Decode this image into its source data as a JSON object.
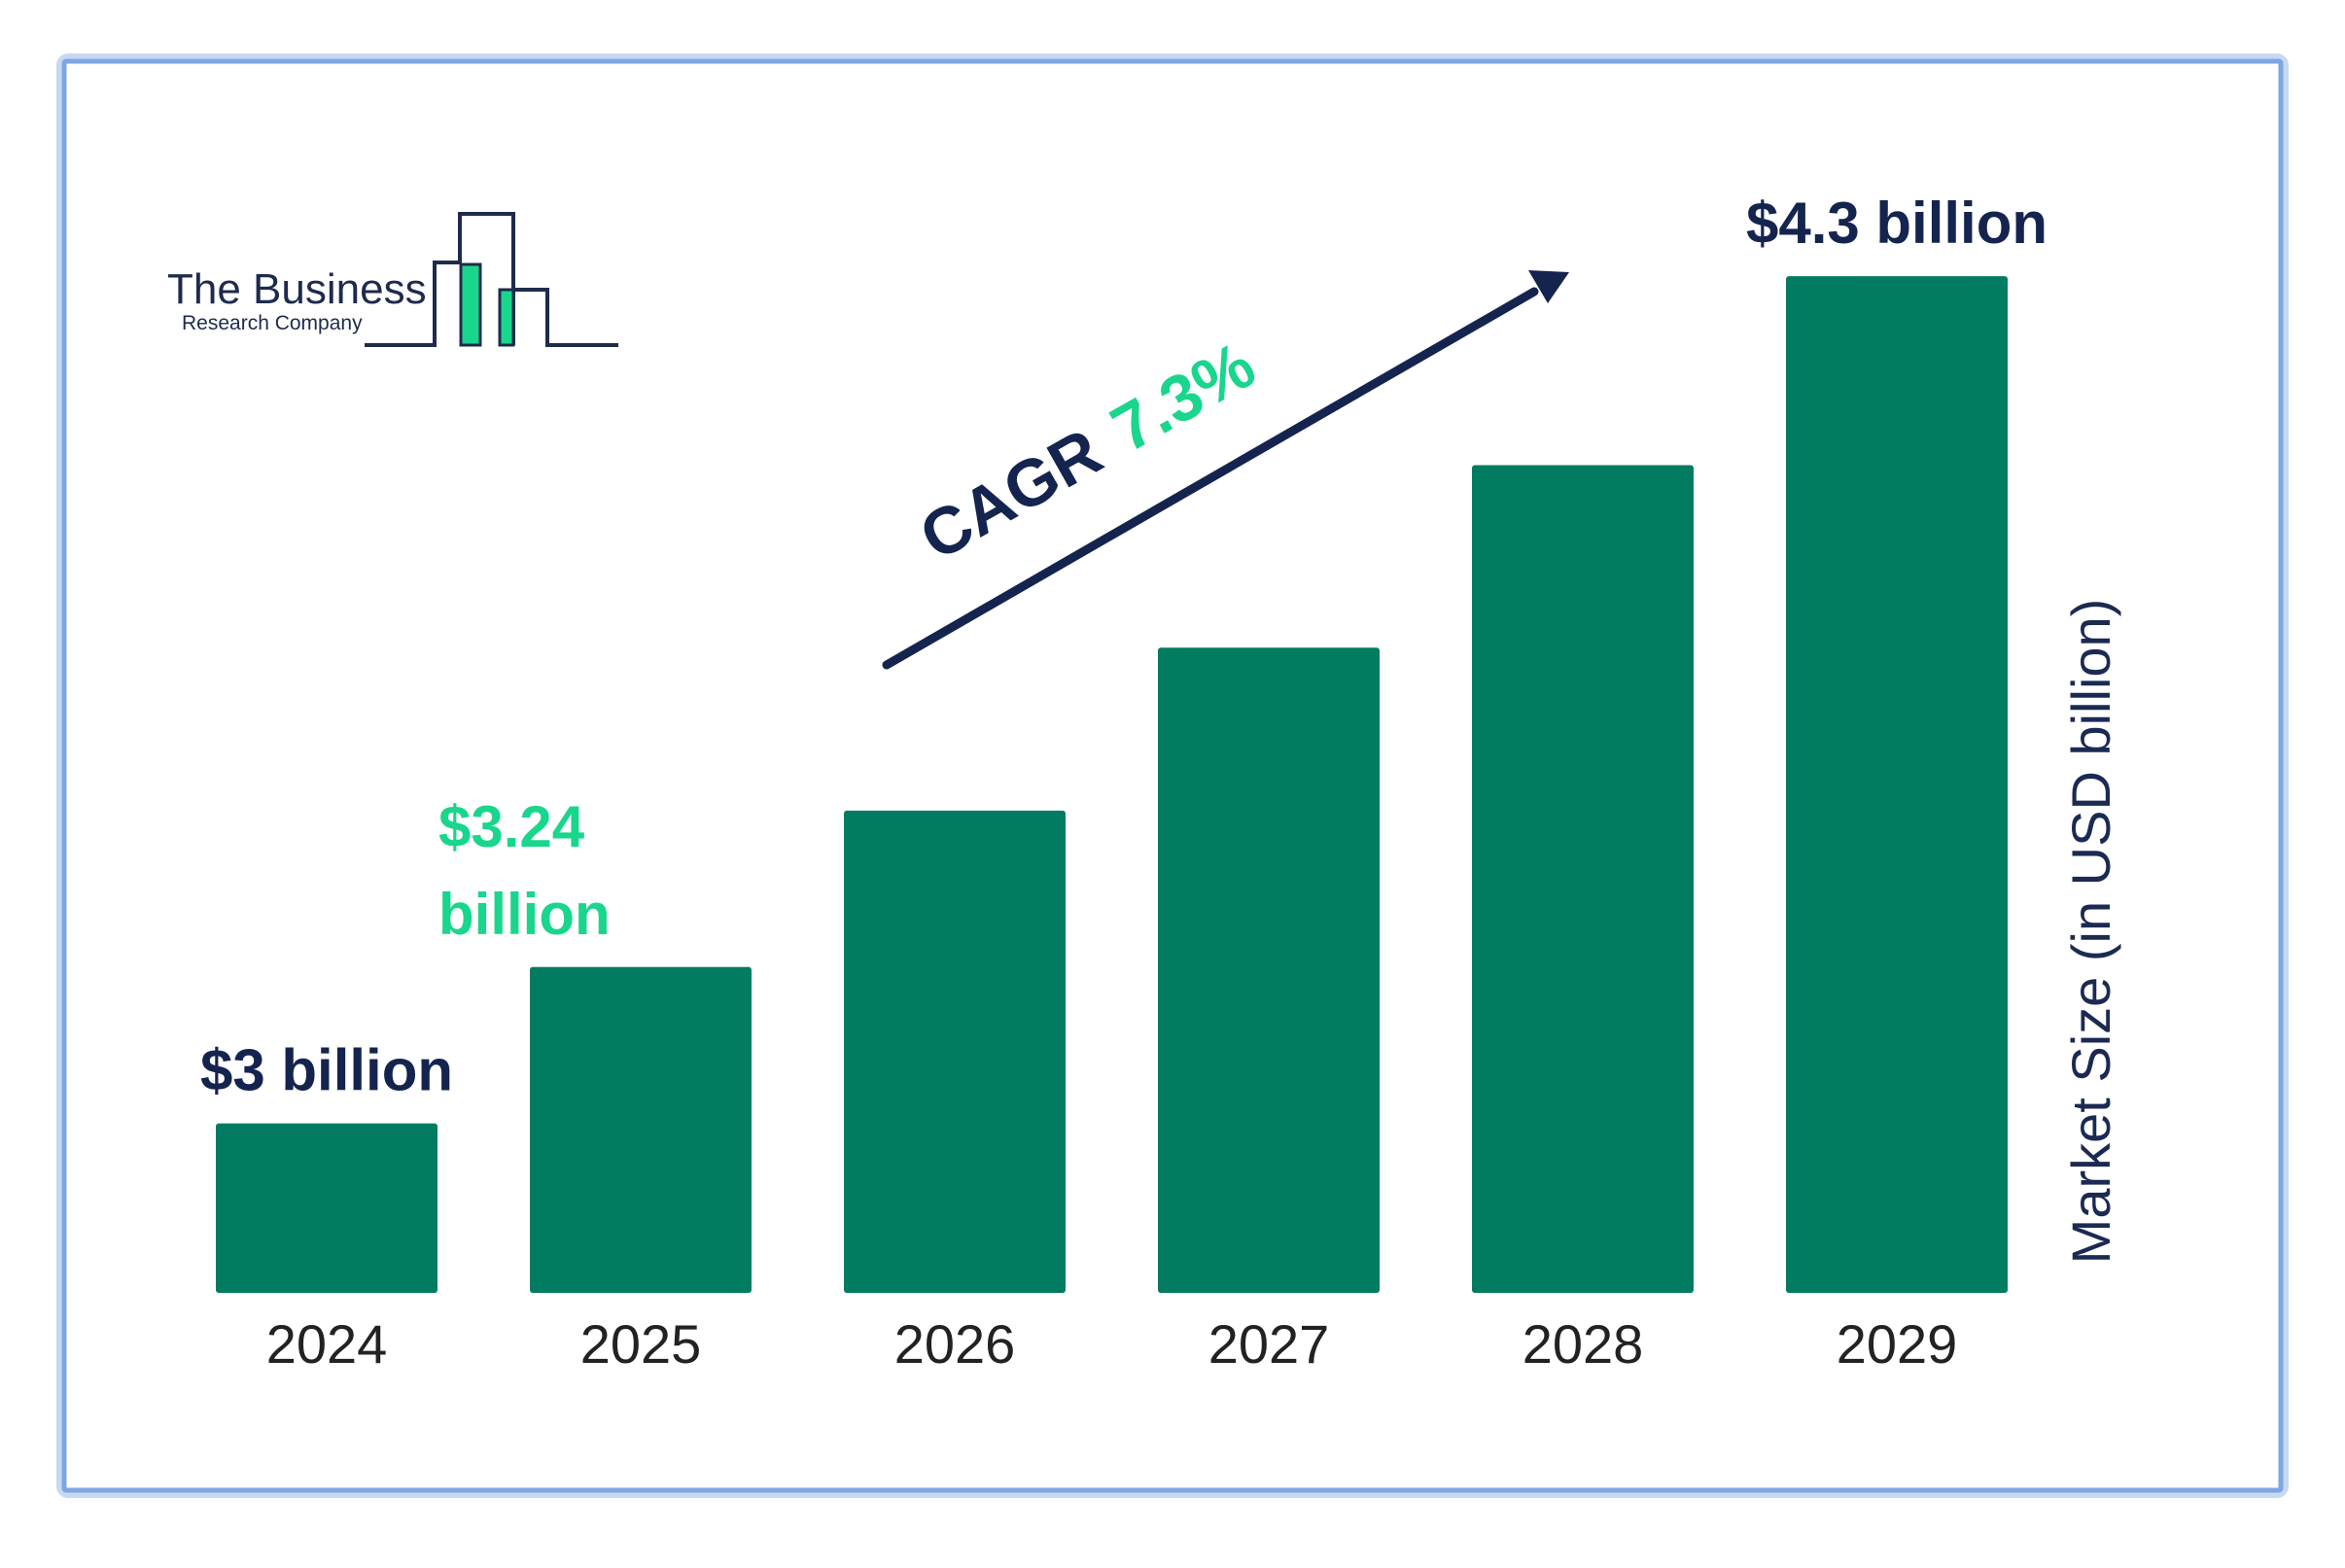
{
  "colors": {
    "bar": "#027c60",
    "accent": "#19d68c",
    "navy": "#14244f",
    "frame": "#7ea6e3"
  },
  "logo": {
    "line1": "The Business",
    "line2": "Research Company"
  },
  "cagr": {
    "prefix": "CAGR",
    "value": "7.3%"
  },
  "chart_data": {
    "type": "bar",
    "title": "",
    "xlabel": "",
    "ylabel": "Market Size (in USD billion)",
    "categories": [
      "2024",
      "2025",
      "2026",
      "2027",
      "2028",
      "2029"
    ],
    "values": [
      3.0,
      3.24,
      3.48,
      3.73,
      4.01,
      4.3
    ],
    "ylim": [
      2.74,
      4.5
    ],
    "grid": false,
    "legend": "none",
    "value_labels": [
      {
        "category": "2024",
        "lines": [
          "$3 billion"
        ],
        "color": "navy"
      },
      {
        "category": "2025",
        "lines": [
          "$3.24",
          "billion"
        ],
        "color": "accent"
      },
      {
        "category": "2029",
        "lines": [
          "$4.3 billion"
        ],
        "color": "navy"
      }
    ]
  }
}
